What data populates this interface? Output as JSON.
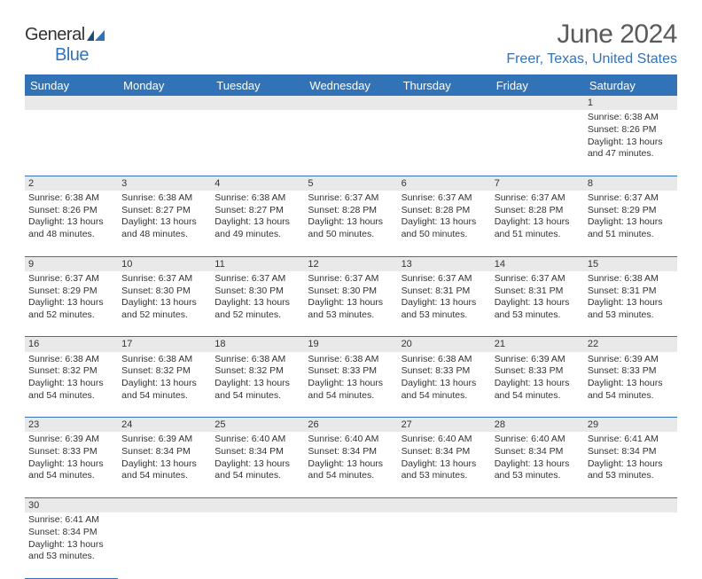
{
  "brand": {
    "word1": "General",
    "word2": "Blue"
  },
  "title": "June 2024",
  "location": "Freer, Texas, United States",
  "dow": [
    "Sunday",
    "Monday",
    "Tuesday",
    "Wednesday",
    "Thursday",
    "Friday",
    "Saturday"
  ],
  "colors": {
    "accent": "#3273b8",
    "daybar": "#e9e9e9",
    "text": "#333333",
    "title": "#5a5a5a"
  },
  "weeks": [
    [
      null,
      null,
      null,
      null,
      null,
      null,
      {
        "d": "1",
        "sr": "6:38 AM",
        "ss": "8:26 PM",
        "dl": "13 hours and 47 minutes."
      }
    ],
    [
      {
        "d": "2",
        "sr": "6:38 AM",
        "ss": "8:26 PM",
        "dl": "13 hours and 48 minutes."
      },
      {
        "d": "3",
        "sr": "6:38 AM",
        "ss": "8:27 PM",
        "dl": "13 hours and 48 minutes."
      },
      {
        "d": "4",
        "sr": "6:38 AM",
        "ss": "8:27 PM",
        "dl": "13 hours and 49 minutes."
      },
      {
        "d": "5",
        "sr": "6:37 AM",
        "ss": "8:28 PM",
        "dl": "13 hours and 50 minutes."
      },
      {
        "d": "6",
        "sr": "6:37 AM",
        "ss": "8:28 PM",
        "dl": "13 hours and 50 minutes."
      },
      {
        "d": "7",
        "sr": "6:37 AM",
        "ss": "8:28 PM",
        "dl": "13 hours and 51 minutes."
      },
      {
        "d": "8",
        "sr": "6:37 AM",
        "ss": "8:29 PM",
        "dl": "13 hours and 51 minutes."
      }
    ],
    [
      {
        "d": "9",
        "sr": "6:37 AM",
        "ss": "8:29 PM",
        "dl": "13 hours and 52 minutes."
      },
      {
        "d": "10",
        "sr": "6:37 AM",
        "ss": "8:30 PM",
        "dl": "13 hours and 52 minutes."
      },
      {
        "d": "11",
        "sr": "6:37 AM",
        "ss": "8:30 PM",
        "dl": "13 hours and 52 minutes."
      },
      {
        "d": "12",
        "sr": "6:37 AM",
        "ss": "8:30 PM",
        "dl": "13 hours and 53 minutes."
      },
      {
        "d": "13",
        "sr": "6:37 AM",
        "ss": "8:31 PM",
        "dl": "13 hours and 53 minutes."
      },
      {
        "d": "14",
        "sr": "6:37 AM",
        "ss": "8:31 PM",
        "dl": "13 hours and 53 minutes."
      },
      {
        "d": "15",
        "sr": "6:38 AM",
        "ss": "8:31 PM",
        "dl": "13 hours and 53 minutes."
      }
    ],
    [
      {
        "d": "16",
        "sr": "6:38 AM",
        "ss": "8:32 PM",
        "dl": "13 hours and 54 minutes."
      },
      {
        "d": "17",
        "sr": "6:38 AM",
        "ss": "8:32 PM",
        "dl": "13 hours and 54 minutes."
      },
      {
        "d": "18",
        "sr": "6:38 AM",
        "ss": "8:32 PM",
        "dl": "13 hours and 54 minutes."
      },
      {
        "d": "19",
        "sr": "6:38 AM",
        "ss": "8:33 PM",
        "dl": "13 hours and 54 minutes."
      },
      {
        "d": "20",
        "sr": "6:38 AM",
        "ss": "8:33 PM",
        "dl": "13 hours and 54 minutes."
      },
      {
        "d": "21",
        "sr": "6:39 AM",
        "ss": "8:33 PM",
        "dl": "13 hours and 54 minutes."
      },
      {
        "d": "22",
        "sr": "6:39 AM",
        "ss": "8:33 PM",
        "dl": "13 hours and 54 minutes."
      }
    ],
    [
      {
        "d": "23",
        "sr": "6:39 AM",
        "ss": "8:33 PM",
        "dl": "13 hours and 54 minutes."
      },
      {
        "d": "24",
        "sr": "6:39 AM",
        "ss": "8:34 PM",
        "dl": "13 hours and 54 minutes."
      },
      {
        "d": "25",
        "sr": "6:40 AM",
        "ss": "8:34 PM",
        "dl": "13 hours and 54 minutes."
      },
      {
        "d": "26",
        "sr": "6:40 AM",
        "ss": "8:34 PM",
        "dl": "13 hours and 54 minutes."
      },
      {
        "d": "27",
        "sr": "6:40 AM",
        "ss": "8:34 PM",
        "dl": "13 hours and 53 minutes."
      },
      {
        "d": "28",
        "sr": "6:40 AM",
        "ss": "8:34 PM",
        "dl": "13 hours and 53 minutes."
      },
      {
        "d": "29",
        "sr": "6:41 AM",
        "ss": "8:34 PM",
        "dl": "13 hours and 53 minutes."
      }
    ],
    [
      {
        "d": "30",
        "sr": "6:41 AM",
        "ss": "8:34 PM",
        "dl": "13 hours and 53 minutes."
      },
      null,
      null,
      null,
      null,
      null,
      null
    ]
  ],
  "labels": {
    "sunrise": "Sunrise:",
    "sunset": "Sunset:",
    "daylight": "Daylight:"
  }
}
